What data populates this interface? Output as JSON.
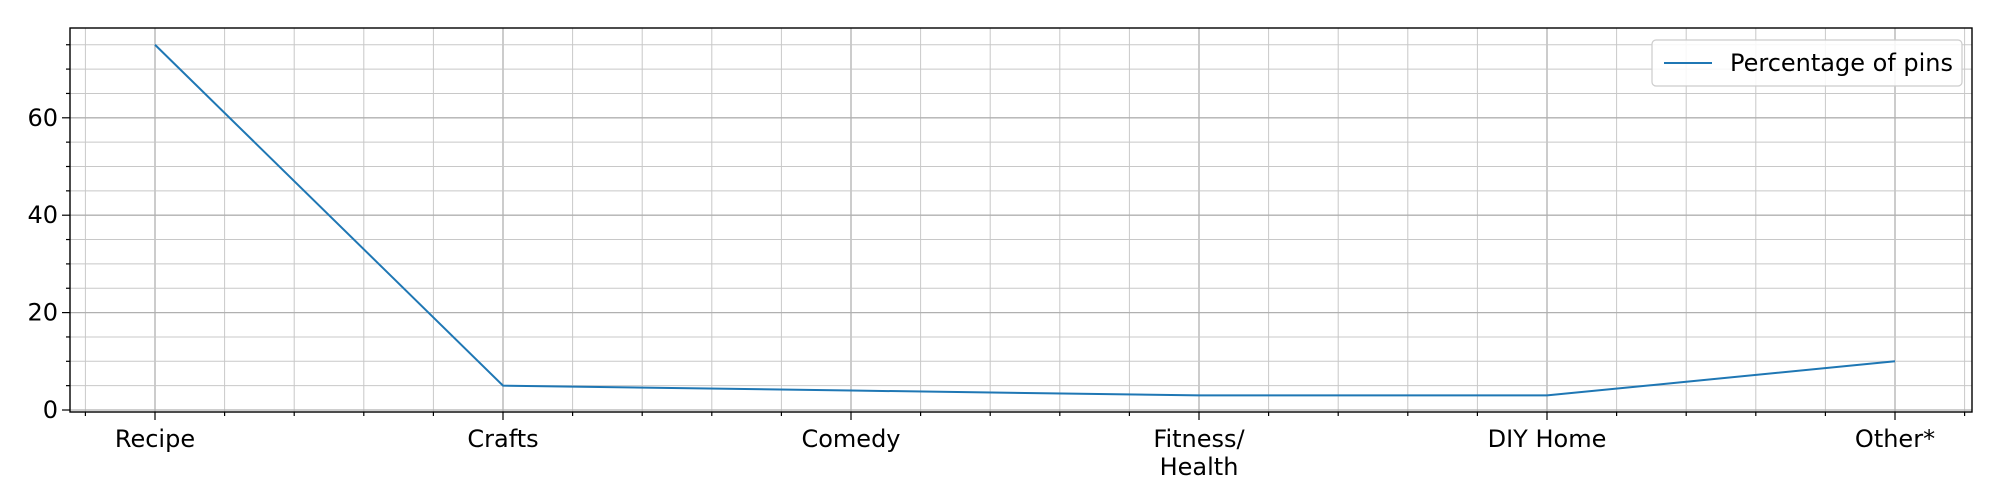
{
  "chart_data": {
    "type": "line",
    "categories": [
      "Recipe",
      "Crafts",
      "Comedy",
      "Fitness/\nHealth",
      "DIY Home",
      "Other*"
    ],
    "series": [
      {
        "name": "Percentage of pins",
        "values": [
          75,
          5,
          4,
          3,
          3,
          10
        ],
        "color": "#1f77b4"
      }
    ],
    "title": "",
    "xlabel": "",
    "ylabel": "",
    "ylim": [
      0,
      79
    ],
    "yticks": [
      0,
      20,
      40,
      60
    ],
    "grid": true,
    "minor_grid": true,
    "legend_position": "top-right"
  }
}
